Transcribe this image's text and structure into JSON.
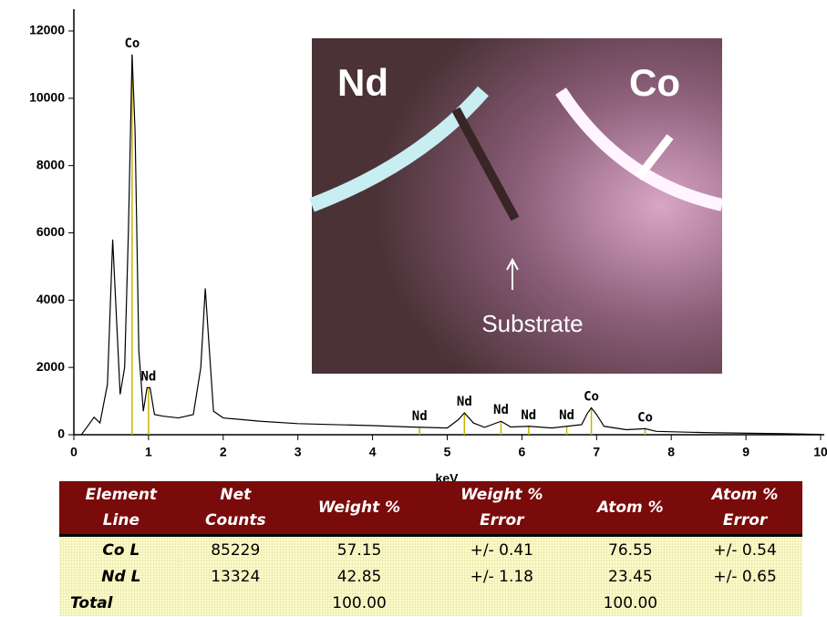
{
  "chart_data": {
    "type": "line",
    "xlabel": "keV",
    "x": [
      0.1,
      0.2,
      0.27,
      0.35,
      0.45,
      0.52,
      0.57,
      0.62,
      0.68,
      0.73,
      0.78,
      0.82,
      0.87,
      0.93,
      0.98,
      1.02,
      1.08,
      1.2,
      1.4,
      1.6,
      1.7,
      1.76,
      1.8,
      1.87,
      2.0,
      2.5,
      3.0,
      3.5,
      4.0,
      4.5,
      5.0,
      5.15,
      5.23,
      5.35,
      5.5,
      5.72,
      5.85,
      6.1,
      6.4,
      6.8,
      6.88,
      6.93,
      7.0,
      7.1,
      7.4,
      7.65,
      7.8,
      8.5,
      9.5,
      10.0
    ],
    "series": [
      {
        "color": "#000000",
        "values": [
          0,
          300,
          520,
          350,
          1500,
          5800,
          3500,
          1200,
          2000,
          6000,
          11300,
          9000,
          2500,
          700,
          1400,
          1400,
          600,
          550,
          500,
          600,
          2000,
          4350,
          3000,
          700,
          500,
          400,
          330,
          300,
          270,
          230,
          200,
          450,
          650,
          350,
          220,
          400,
          230,
          250,
          200,
          300,
          650,
          800,
          600,
          250,
          150,
          180,
          100,
          60,
          30,
          10
        ]
      }
    ],
    "annotations": [
      {
        "text": "Co",
        "x": 0.78
      },
      {
        "text": "Nd",
        "x": 1.0
      },
      {
        "text": "Nd",
        "x": 4.63
      },
      {
        "text": "Nd",
        "x": 5.23
      },
      {
        "text": "Nd",
        "x": 5.72
      },
      {
        "text": "Nd",
        "x": 6.09
      },
      {
        "text": "Nd",
        "x": 6.6
      },
      {
        "text": "Co",
        "x": 6.93
      },
      {
        "text": "Co",
        "x": 7.65
      }
    ],
    "annotation_color": "#c8b400",
    "xlim": [
      0,
      10
    ],
    "xticks": [
      0,
      1,
      2,
      3,
      4,
      5,
      6,
      7,
      8,
      9,
      10
    ],
    "ylim": [
      0,
      12000
    ],
    "yticks": [
      0,
      2000,
      4000,
      6000,
      8000,
      10000,
      12000
    ]
  },
  "photo": {
    "left_label": "Nd",
    "right_label": "Co",
    "caption": "Substrate"
  },
  "table": {
    "header": [
      "Element\nLine",
      "Net\nCounts",
      "Weight %",
      "Weight %\nError",
      "Atom %",
      "Atom %\nError"
    ],
    "rows": [
      [
        "Co L",
        "85229",
        "57.15",
        "+/- 0.41",
        "76.55",
        "+/- 0.54"
      ],
      [
        "Nd L",
        "13324",
        "42.85",
        "+/- 1.18",
        "23.45",
        "+/- 0.65"
      ],
      [
        "Total",
        null,
        "100.00",
        null,
        "100.00",
        null
      ]
    ]
  }
}
